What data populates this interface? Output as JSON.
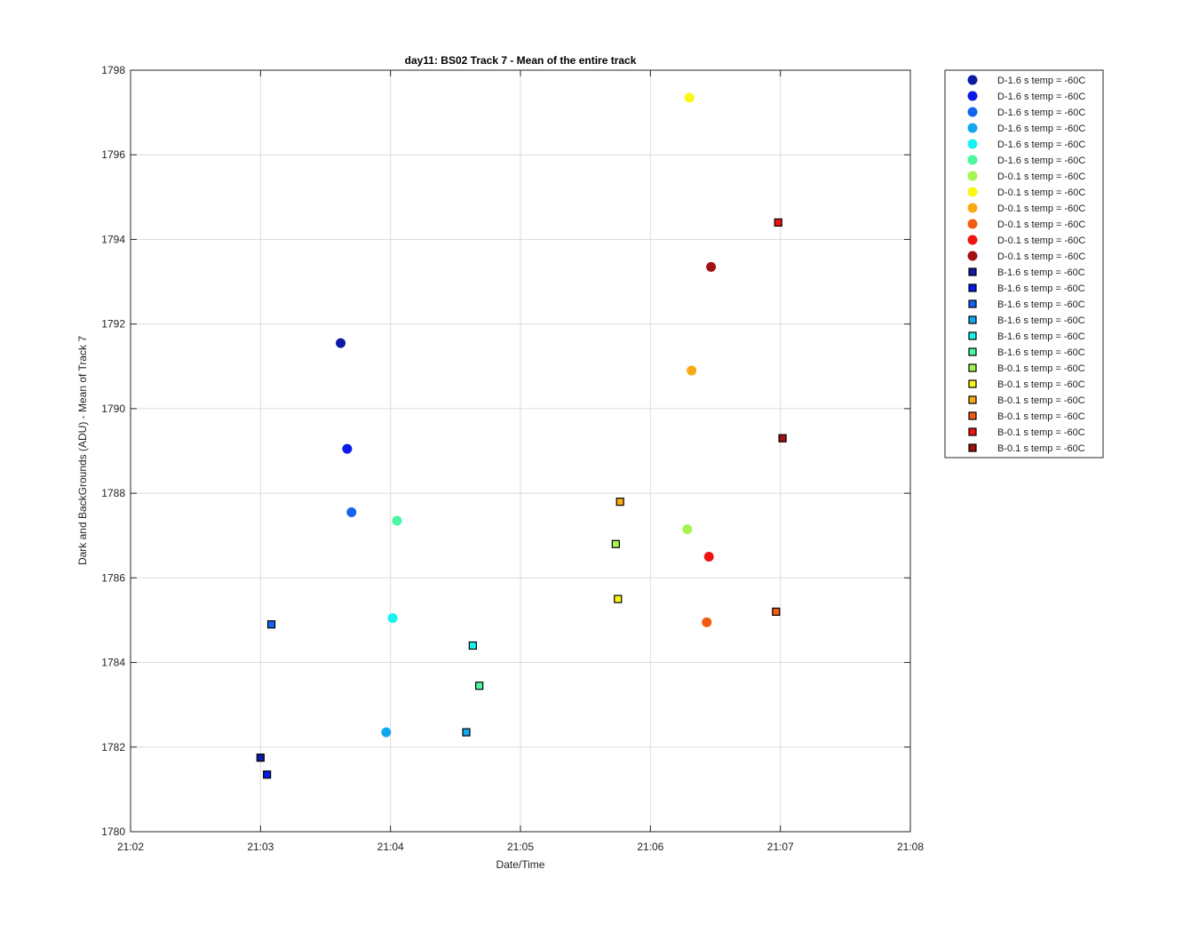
{
  "chart_data": {
    "type": "scatter",
    "title": "day11: BS02  Track 7 - Mean of the entire track",
    "xlabel": "Date/Time",
    "ylabel": "Dark and BackGrounds (ADU) - Mean of Track 7",
    "xlim": [
      "21:02",
      "21:08"
    ],
    "ylim": [
      1780,
      1798
    ],
    "x_ticks": [
      "21:02",
      "21:03",
      "21:04",
      "21:05",
      "21:06",
      "21:07",
      "21:08"
    ],
    "y_ticks": [
      1780,
      1782,
      1784,
      1786,
      1788,
      1790,
      1792,
      1794,
      1796,
      1798
    ],
    "grid": true,
    "legend_position": "outside-right",
    "series": [
      {
        "name": "D-1.6 s temp = -60C",
        "marker": "circle",
        "color": "#0b1ba4",
        "x": "21:03:37",
        "y": 1791.55
      },
      {
        "name": "D-1.6 s temp = -60C",
        "marker": "circle",
        "color": "#0a18e8",
        "x": "21:03:40",
        "y": 1789.05
      },
      {
        "name": "D-1.6 s temp = -60C",
        "marker": "circle",
        "color": "#1563ef",
        "x": "21:03:42",
        "y": 1787.55
      },
      {
        "name": "D-1.6 s temp = -60C",
        "marker": "circle",
        "color": "#13a6f1",
        "x": "21:03:58",
        "y": 1782.35
      },
      {
        "name": "D-1.6 s temp = -60C",
        "marker": "circle",
        "color": "#18f3f0",
        "x": "21:04:01",
        "y": 1785.05
      },
      {
        "name": "D-1.6 s temp = -60C",
        "marker": "circle",
        "color": "#4cf7a0",
        "x": "21:04:03",
        "y": 1787.35
      },
      {
        "name": "D-0.1 s temp = -60C",
        "marker": "circle",
        "color": "#a4f550",
        "x": "21:06:17",
        "y": 1787.15
      },
      {
        "name": "D-0.1 s temp = -60C",
        "marker": "circle",
        "color": "#fbf614",
        "x": "21:06:18",
        "y": 1797.35
      },
      {
        "name": "D-0.1 s temp = -60C",
        "marker": "circle",
        "color": "#f8a913",
        "x": "21:06:19",
        "y": 1790.9
      },
      {
        "name": "D-0.1 s temp = -60C",
        "marker": "circle",
        "color": "#f25c11",
        "x": "21:06:26",
        "y": 1784.95
      },
      {
        "name": "D-0.1 s temp = -60C",
        "marker": "circle",
        "color": "#ee1411",
        "x": "21:06:27",
        "y": 1786.5
      },
      {
        "name": "D-0.1 s temp = -60C",
        "marker": "circle",
        "color": "#a31012",
        "x": "21:06:28",
        "y": 1793.35
      },
      {
        "name": "B-1.6 s temp = -60C",
        "marker": "square",
        "color": "#0b1ba4",
        "x": "21:03:00",
        "y": 1781.75
      },
      {
        "name": "B-1.6 s temp = -60C",
        "marker": "square",
        "color": "#0a18e8",
        "x": "21:03:03",
        "y": 1781.35
      },
      {
        "name": "B-1.6 s temp = -60C",
        "marker": "square",
        "color": "#1563ef",
        "x": "21:03:05",
        "y": 1784.9
      },
      {
        "name": "B-1.6 s temp = -60C",
        "marker": "square",
        "color": "#13a6f1",
        "x": "21:04:35",
        "y": 1782.35
      },
      {
        "name": "B-1.6 s temp = -60C",
        "marker": "square",
        "color": "#18f3f0",
        "x": "21:04:38",
        "y": 1784.4
      },
      {
        "name": "B-1.6 s temp = -60C",
        "marker": "square",
        "color": "#4cf7a0",
        "x": "21:04:41",
        "y": 1783.45
      },
      {
        "name": "B-0.1 s temp = -60C",
        "marker": "square",
        "color": "#a4f550",
        "x": "21:05:44",
        "y": 1786.8
      },
      {
        "name": "B-0.1 s temp = -60C",
        "marker": "square",
        "color": "#fbf614",
        "x": "21:05:45",
        "y": 1785.5
      },
      {
        "name": "B-0.1 s temp = -60C",
        "marker": "square",
        "color": "#f8a913",
        "x": "21:05:46",
        "y": 1787.8
      },
      {
        "name": "B-0.1 s temp = -60C",
        "marker": "square",
        "color": "#f25c11",
        "x": "21:06:58",
        "y": 1785.2
      },
      {
        "name": "B-0.1 s temp = -60C",
        "marker": "square",
        "color": "#ee1411",
        "x": "21:06:59",
        "y": 1794.4
      },
      {
        "name": "B-0.1 s temp = -60C",
        "marker": "square",
        "color": "#a31012",
        "x": "21:07:01",
        "y": 1789.3
      }
    ]
  }
}
